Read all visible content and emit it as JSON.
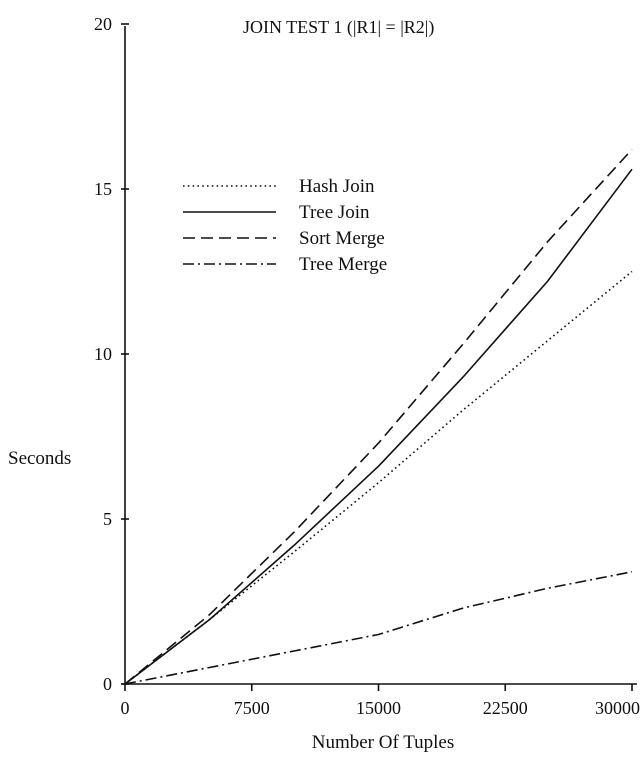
{
  "chart_data": {
    "type": "line",
    "title": "JOIN TEST 1  (|R1| = |R2|)",
    "xlabel": "Number Of Tuples",
    "ylabel": "Seconds",
    "xlim": [
      0,
      30000
    ],
    "ylim": [
      0,
      20
    ],
    "xticks": [
      0,
      7500,
      15000,
      22500,
      30000
    ],
    "yticks": [
      0,
      5,
      10,
      15,
      20
    ],
    "grid": false,
    "legend_position": "upper-left",
    "series": [
      {
        "name": "Hash Join",
        "style": "dotted",
        "x": [
          0,
          5000,
          10000,
          15000,
          20000,
          25000,
          30000
        ],
        "y": [
          0,
          1.95,
          4.0,
          6.1,
          8.3,
          10.4,
          12.5
        ]
      },
      {
        "name": "Tree Join",
        "style": "solid",
        "x": [
          0,
          5000,
          10000,
          15000,
          20000,
          25000,
          30000
        ],
        "y": [
          0,
          1.95,
          4.2,
          6.6,
          9.3,
          12.2,
          15.6
        ]
      },
      {
        "name": "Sort Merge",
        "style": "dashed",
        "x": [
          0,
          5000,
          10000,
          15000,
          20000,
          25000,
          30000
        ],
        "y": [
          0,
          2.1,
          4.6,
          7.3,
          10.3,
          13.4,
          16.2
        ]
      },
      {
        "name": "Tree Merge",
        "style": "dashdot",
        "x": [
          0,
          5000,
          10000,
          15000,
          20000,
          25000,
          30000
        ],
        "y": [
          0,
          0.5,
          1.0,
          1.5,
          2.3,
          2.9,
          3.4
        ]
      }
    ]
  }
}
